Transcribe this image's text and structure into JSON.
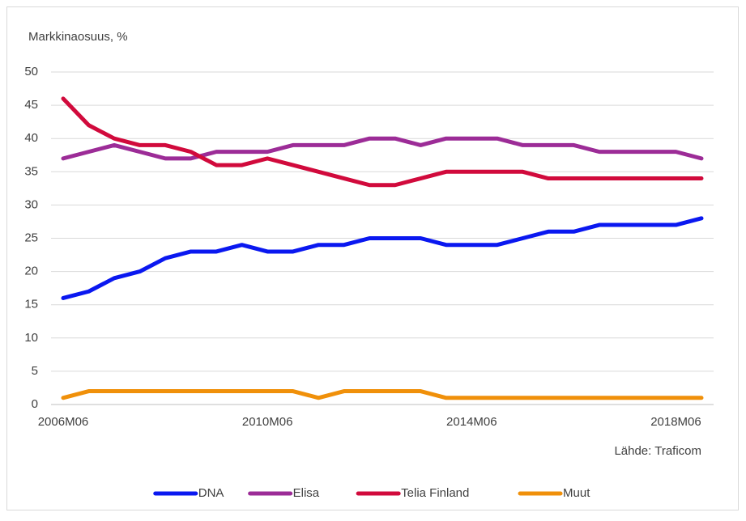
{
  "chart_data": {
    "type": "line",
    "y_label": "Markkinaosuus, %",
    "source": "Lähde: Traficom",
    "categories": [
      "2006M06",
      null,
      null,
      null,
      null,
      null,
      null,
      null,
      "2010M06",
      null,
      null,
      null,
      null,
      null,
      null,
      null,
      "2014M06",
      null,
      null,
      null,
      null,
      null,
      null,
      null,
      "2018M06",
      null
    ],
    "series": [
      {
        "name": "DNA",
        "color": "#0a18f0",
        "values": [
          16,
          17,
          19,
          20,
          22,
          23,
          23,
          24,
          23,
          23,
          24,
          24,
          25,
          25,
          25,
          24,
          24,
          24,
          25,
          26,
          26,
          27,
          27,
          27,
          27,
          28
        ]
      },
      {
        "name": "Elisa",
        "color": "#9c2c97",
        "values": [
          37,
          38,
          39,
          38,
          37,
          37,
          38,
          38,
          38,
          39,
          39,
          39,
          40,
          40,
          39,
          40,
          40,
          40,
          39,
          39,
          39,
          38,
          38,
          38,
          38,
          37
        ]
      },
      {
        "name": "Telia Finland",
        "color": "#d10a3c",
        "values": [
          46,
          42,
          40,
          39,
          39,
          38,
          36,
          36,
          37,
          36,
          35,
          34,
          33,
          33,
          34,
          35,
          35,
          35,
          35,
          34,
          34,
          34,
          34,
          34,
          34,
          34
        ]
      },
      {
        "name": "Muut",
        "color": "#f0900a",
        "values": [
          1,
          2,
          2,
          2,
          2,
          2,
          2,
          2,
          2,
          2,
          1,
          2,
          2,
          2,
          2,
          1,
          1,
          1,
          1,
          1,
          1,
          1,
          1,
          1,
          1,
          1
        ]
      }
    ],
    "ylim": [
      0,
      50
    ],
    "yticks": [
      0,
      5,
      10,
      15,
      20,
      25,
      30,
      35,
      40,
      45,
      50
    ],
    "grid": true,
    "legend": "bottom"
  }
}
